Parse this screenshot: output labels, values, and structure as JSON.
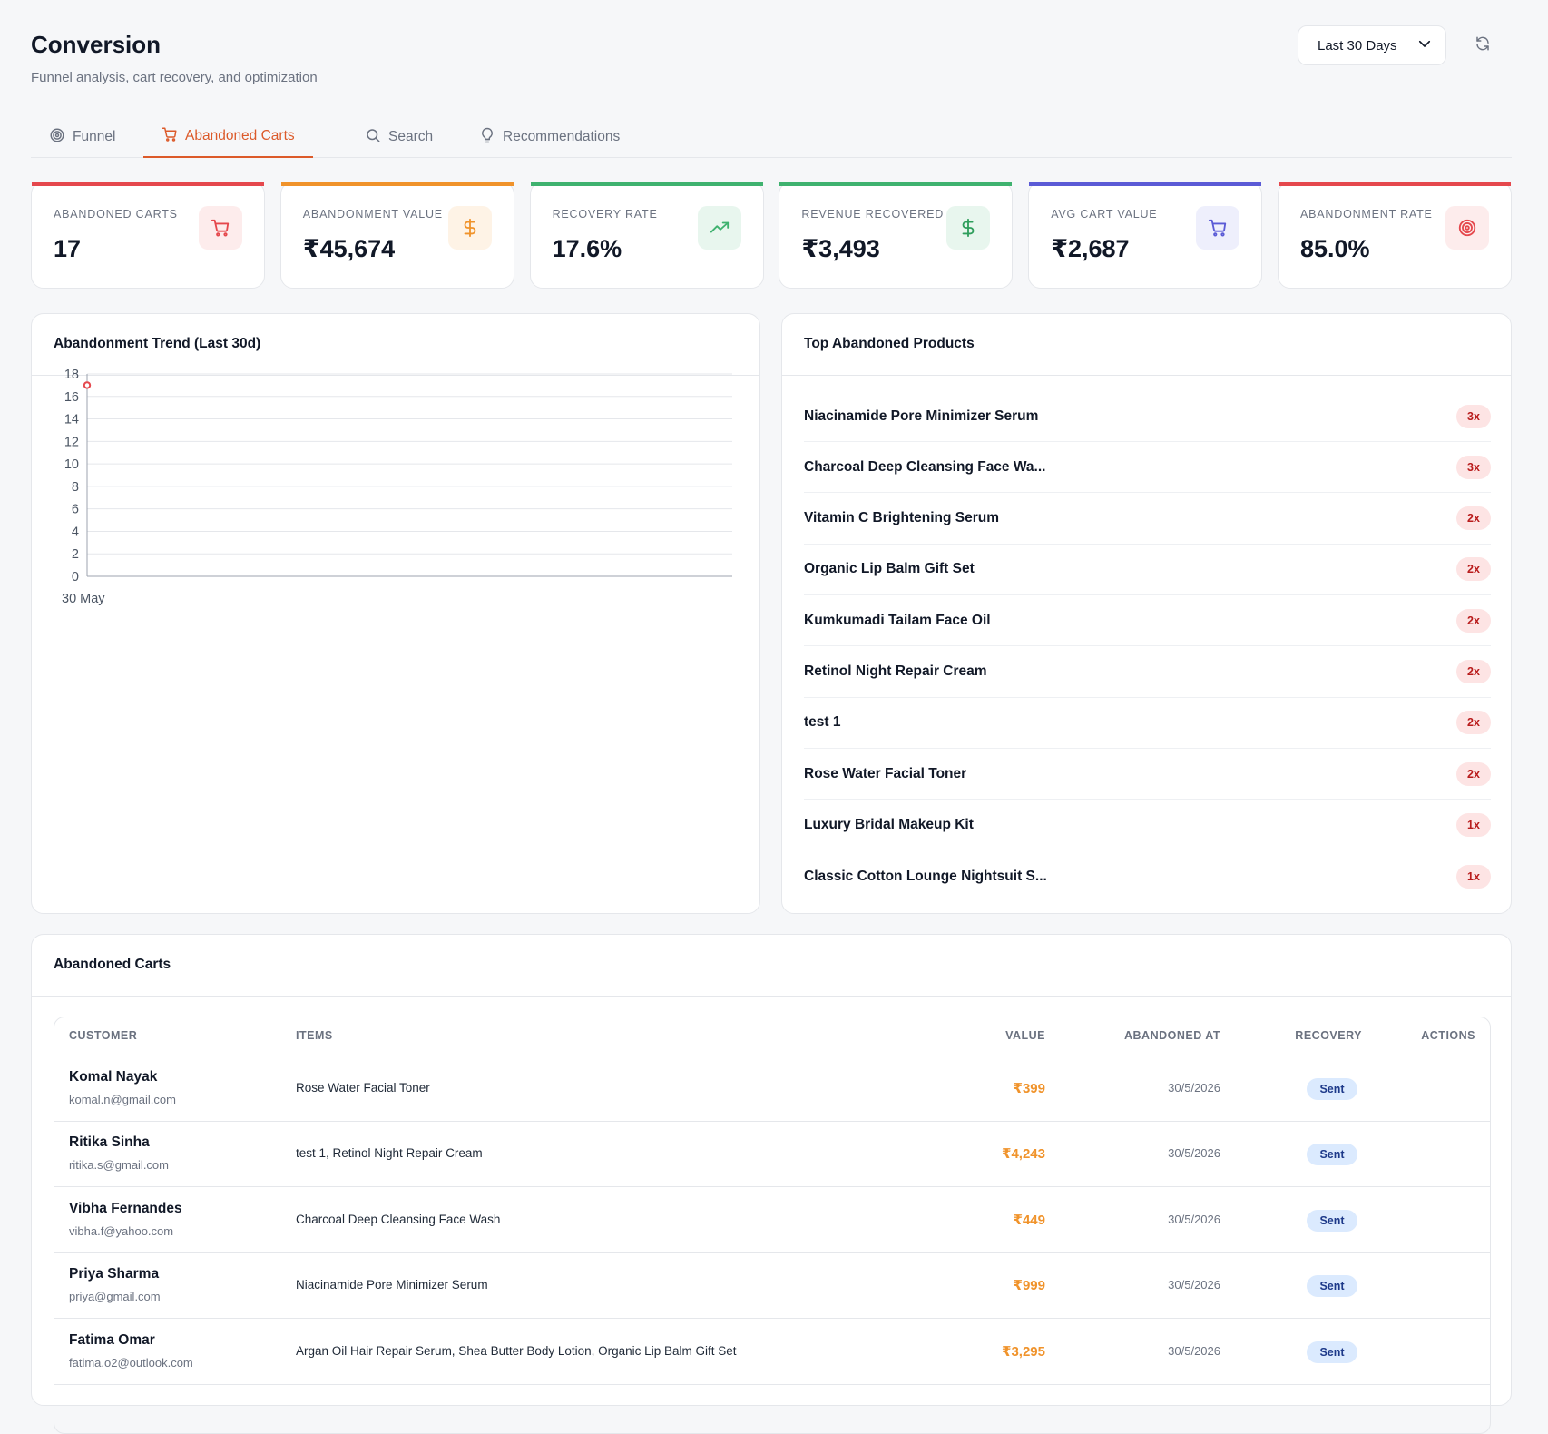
{
  "header": {
    "title": "Conversion",
    "subtitle": "Funnel analysis, cart recovery, and optimization",
    "range_label": "Last 30 Days"
  },
  "tabs": [
    {
      "label": "Funnel",
      "icon": "target-icon",
      "active": false
    },
    {
      "label": "Abandoned Carts",
      "icon": "cart-icon",
      "active": true
    },
    {
      "label": "Search",
      "icon": "search-icon",
      "active": false
    },
    {
      "label": "Recommendations",
      "icon": "lightbulb-icon",
      "active": false
    }
  ],
  "stats": [
    {
      "label": "ABANDONED CARTS",
      "value": "17",
      "icon": "cart-icon",
      "accent": "#e5484d",
      "tint": "#fdecec",
      "icon_color": "#e5484d"
    },
    {
      "label": "ABANDONMENT VALUE",
      "value": "₹45,674",
      "icon": "dollar-icon",
      "accent": "#f0932b",
      "tint": "#fef3e6",
      "icon_color": "#f0932b"
    },
    {
      "label": "RECOVERY RATE",
      "value": "17.6%",
      "icon": "trending-up-icon",
      "accent": "#3fb26f",
      "tint": "#e8f6ee",
      "icon_color": "#3fb26f"
    },
    {
      "label": "REVENUE RECOVERED",
      "value": "₹3,493",
      "icon": "dollar-icon",
      "accent": "#3fb26f",
      "tint": "#e8f6ee",
      "icon_color": "#2f9e5c"
    },
    {
      "label": "AVG CART VALUE",
      "value": "₹2,687",
      "icon": "cart-icon",
      "accent": "#5b5bd6",
      "tint": "#eeeffc",
      "icon_color": "#5b5bd6"
    },
    {
      "label": "ABANDONMENT RATE",
      "value": "85.0%",
      "icon": "target-icon",
      "accent": "#e5484d",
      "tint": "#fdecec",
      "icon_color": "#e5484d"
    }
  ],
  "trend": {
    "title": "Abandonment Trend (Last 30d)",
    "chart_data": {
      "type": "line",
      "x": [
        "30 May"
      ],
      "series": [
        {
          "values": [
            17
          ]
        }
      ],
      "ylim": [
        0,
        18
      ],
      "yticks": [
        0,
        2,
        4,
        6,
        8,
        10,
        12,
        14,
        16,
        18
      ],
      "xticks": [
        "30 May"
      ],
      "grid": true,
      "color": "#e5484d"
    }
  },
  "top_products": {
    "title": "Top Abandoned Products",
    "items": [
      {
        "name": "Niacinamide Pore Minimizer Serum",
        "count": "3x"
      },
      {
        "name": "Charcoal Deep Cleansing Face Wa...",
        "count": "3x"
      },
      {
        "name": "Vitamin C Brightening Serum",
        "count": "2x"
      },
      {
        "name": "Organic Lip Balm Gift Set",
        "count": "2x"
      },
      {
        "name": "Kumkumadi Tailam Face Oil",
        "count": "2x"
      },
      {
        "name": "Retinol Night Repair Cream",
        "count": "2x"
      },
      {
        "name": "test 1",
        "count": "2x"
      },
      {
        "name": "Rose Water Facial Toner",
        "count": "2x"
      },
      {
        "name": "Luxury Bridal Makeup Kit",
        "count": "1x"
      },
      {
        "name": "Classic Cotton Lounge Nightsuit S...",
        "count": "1x"
      }
    ]
  },
  "carts": {
    "title": "Abandoned Carts",
    "columns": [
      "CUSTOMER",
      "ITEMS",
      "VALUE",
      "ABANDONED AT",
      "RECOVERY",
      "ACTIONS"
    ],
    "rows": [
      {
        "name": "Komal Nayak",
        "email": "komal.n@gmail.com",
        "items": "Rose Water Facial Toner",
        "value": "₹399",
        "abandoned_at": "30/5/2026",
        "recovery": "Sent"
      },
      {
        "name": "Ritika Sinha",
        "email": "ritika.s@gmail.com",
        "items": "test 1, Retinol Night Repair Cream",
        "value": "₹4,243",
        "abandoned_at": "30/5/2026",
        "recovery": "Sent"
      },
      {
        "name": "Vibha Fernandes",
        "email": "vibha.f@yahoo.com",
        "items": "Charcoal Deep Cleansing Face Wash",
        "value": "₹449",
        "abandoned_at": "30/5/2026",
        "recovery": "Sent"
      },
      {
        "name": "Priya Sharma",
        "email": "priya@gmail.com",
        "items": "Niacinamide Pore Minimizer Serum",
        "value": "₹999",
        "abandoned_at": "30/5/2026",
        "recovery": "Sent"
      },
      {
        "name": "Fatima Omar",
        "email": "fatima.o2@outlook.com",
        "items": "Argan Oil Hair Repair Serum, Shea Butter Body Lotion, Organic Lip Balm Gift Set",
        "value": "₹3,295",
        "abandoned_at": "30/5/2026",
        "recovery": "Sent"
      }
    ]
  }
}
